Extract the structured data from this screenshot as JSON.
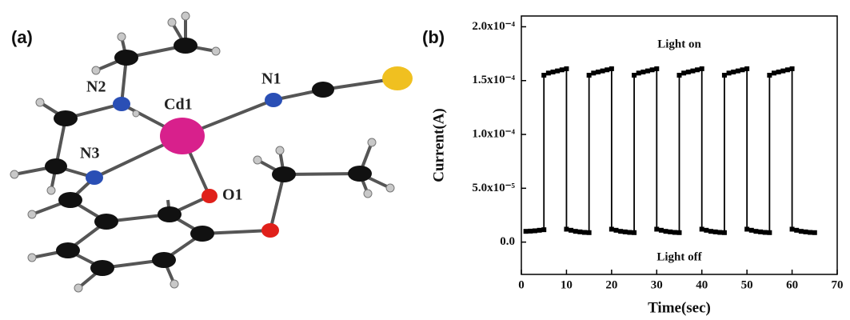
{
  "panels": {
    "a": "(a)",
    "b": "(b)"
  },
  "molecule": {
    "atom_labels": [
      "N2",
      "Cd1",
      "N1",
      "N3",
      "O1"
    ]
  },
  "chart_data": {
    "type": "line",
    "x_label": "Time(sec)",
    "y_label": "Current(A)",
    "annotations": [
      "Light on",
      "Light off"
    ],
    "xlim": [
      0,
      70
    ],
    "xticks": [
      0,
      10,
      20,
      30,
      40,
      50,
      60,
      70
    ],
    "ylim": [
      -3e-05,
      0.00021
    ],
    "yticks": [
      {
        "value": 0,
        "label": "0.0"
      },
      {
        "value": 5e-05,
        "label": "5.0x10⁻⁵"
      },
      {
        "value": 0.0001,
        "label": "1.0x10⁻⁴"
      },
      {
        "value": 0.00015,
        "label": "1.5x10⁻⁴"
      },
      {
        "value": 0.0002,
        "label": "2.0x10⁻⁴"
      }
    ],
    "series": [
      {
        "color": "#000000",
        "x": [
          1,
          2,
          3,
          4,
          5,
          5,
          6,
          7,
          8,
          9,
          10,
          10,
          11,
          12,
          13,
          14,
          15,
          15,
          16,
          17,
          18,
          19,
          20,
          20,
          21,
          22,
          23,
          24,
          25,
          25,
          26,
          27,
          28,
          29,
          30,
          30,
          31,
          32,
          33,
          34,
          35,
          35,
          36,
          37,
          38,
          39,
          40,
          40,
          41,
          42,
          43,
          44,
          45,
          45,
          46,
          47,
          48,
          49,
          50,
          50,
          51,
          52,
          53,
          54,
          55,
          55,
          56,
          57,
          58,
          59,
          60,
          60,
          61,
          62,
          63,
          64,
          65
        ],
        "values": [
          1e-05,
          1.02e-05,
          1.05e-05,
          1.1e-05,
          1.15e-05,
          0.000155,
          0.000157,
          0.000158,
          0.000159,
          0.00016,
          0.000161,
          1.2e-05,
          1.1e-05,
          1e-05,
          9.5e-06,
          9e-06,
          8.8e-06,
          0.000155,
          0.000157,
          0.000158,
          0.000159,
          0.00016,
          0.000161,
          1.2e-05,
          1.1e-05,
          1e-05,
          9.5e-06,
          9e-06,
          8.8e-06,
          0.000155,
          0.000157,
          0.000158,
          0.000159,
          0.00016,
          0.000161,
          1.2e-05,
          1.1e-05,
          1e-05,
          9.5e-06,
          9e-06,
          8.8e-06,
          0.000155,
          0.000157,
          0.000158,
          0.000159,
          0.00016,
          0.000161,
          1.2e-05,
          1.1e-05,
          1e-05,
          9.5e-06,
          9e-06,
          8.8e-06,
          0.000155,
          0.000157,
          0.000158,
          0.000159,
          0.00016,
          0.000161,
          1.2e-05,
          1.1e-05,
          1e-05,
          9.5e-06,
          9e-06,
          8.8e-06,
          0.000155,
          0.000157,
          0.000158,
          0.000159,
          0.00016,
          0.000161,
          1.2e-05,
          1.1e-05,
          1e-05,
          9.5e-06,
          9e-06,
          8.8e-06
        ]
      }
    ]
  }
}
